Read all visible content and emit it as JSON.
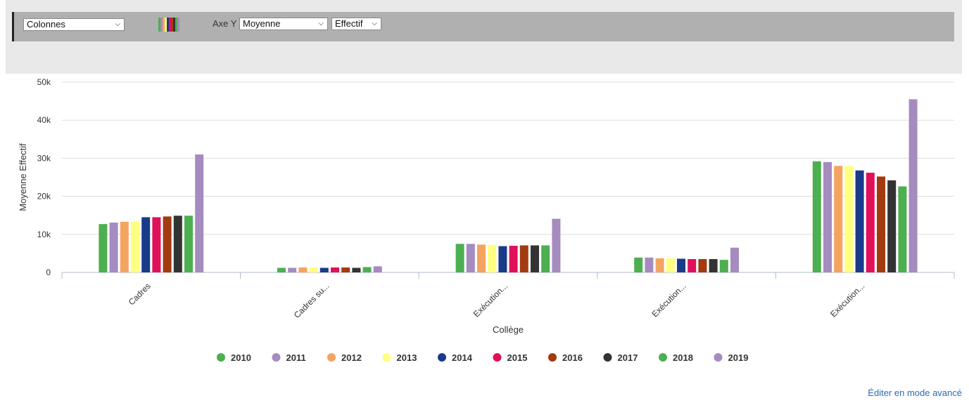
{
  "toolbar": {
    "chart_type": "Colonnes",
    "axis_y_label": "Axe Y",
    "aggregate": "Moyenne",
    "measure": "Effectif",
    "palette_colors": [
      "#4caf50",
      "#a58bbf",
      "#f4a460",
      "#ffff80",
      "#1a3a8a",
      "#e0105a",
      "#a33a10",
      "#333333",
      "#4caf50",
      "#a58bbf"
    ]
  },
  "footer": {
    "advanced_link": "Éditer en mode avancé"
  },
  "chart_data": {
    "type": "bar",
    "xlabel": "Collège",
    "ylabel": "Moyenne Effectif",
    "ylim": [
      0,
      50000
    ],
    "yticks": [
      {
        "value": 0,
        "label": "0"
      },
      {
        "value": 10000,
        "label": "10k"
      },
      {
        "value": 20000,
        "label": "20k"
      },
      {
        "value": 30000,
        "label": "30k"
      },
      {
        "value": 40000,
        "label": "40k"
      },
      {
        "value": 50000,
        "label": "50k"
      }
    ],
    "categories": [
      "Cadres",
      "Cadres su...",
      "Exécution...",
      "Exécution...",
      "Exécution..."
    ],
    "legend_position": "bottom",
    "grid": true,
    "series": [
      {
        "name": "2010",
        "color": "#4caf50",
        "values": [
          12700,
          1200,
          7500,
          3900,
          29200
        ]
      },
      {
        "name": "2011",
        "color": "#a58bbf",
        "values": [
          13100,
          1200,
          7500,
          3900,
          29000
        ]
      },
      {
        "name": "2012",
        "color": "#f4a460",
        "values": [
          13300,
          1300,
          7300,
          3700,
          28000
        ]
      },
      {
        "name": "2013",
        "color": "#ffff80",
        "values": [
          13400,
          1300,
          7200,
          3700,
          28000
        ]
      },
      {
        "name": "2014",
        "color": "#1a3a8a",
        "values": [
          14500,
          1200,
          6900,
          3600,
          26800
        ]
      },
      {
        "name": "2015",
        "color": "#e0105a",
        "values": [
          14500,
          1300,
          7000,
          3500,
          26200
        ]
      },
      {
        "name": "2016",
        "color": "#a33a10",
        "values": [
          14700,
          1300,
          7100,
          3500,
          25200
        ]
      },
      {
        "name": "2017",
        "color": "#333333",
        "values": [
          14900,
          1200,
          7100,
          3500,
          24200
        ]
      },
      {
        "name": "2018",
        "color": "#4caf50",
        "values": [
          14900,
          1400,
          7100,
          3300,
          22600
        ]
      },
      {
        "name": "2019",
        "color": "#a58bbf",
        "values": [
          31000,
          1600,
          14100,
          6500,
          45500
        ]
      }
    ]
  }
}
